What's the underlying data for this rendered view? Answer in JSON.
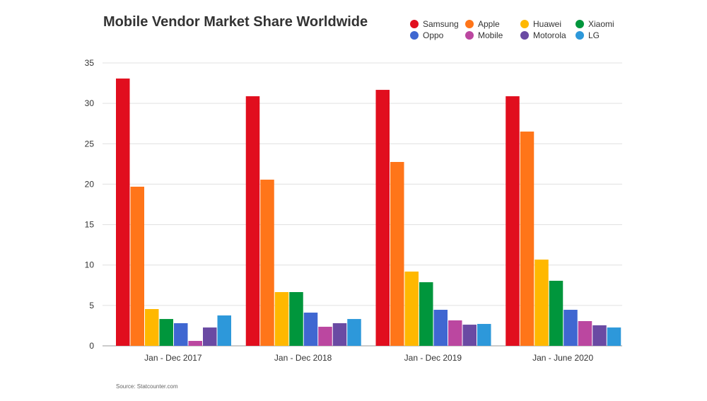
{
  "chart_data": {
    "type": "bar",
    "title": "Mobile Vendor Market Share Worldwide",
    "categories": [
      "Jan - Dec 2017",
      "Jan - Dec 2018",
      "Jan - Dec 2019",
      "Jan - June 2020"
    ],
    "ylim": [
      0,
      35
    ],
    "yticks": [
      0,
      5,
      10,
      15,
      20,
      25,
      30,
      35
    ],
    "grid": true,
    "legend_position": "top-right",
    "series": [
      {
        "name": "Samsung",
        "color": "#e10e1e",
        "values": [
          33.07,
          30.88,
          31.67,
          30.88
        ]
      },
      {
        "name": "Apple",
        "color": "#ff7519",
        "values": [
          19.69,
          20.56,
          22.75,
          26.51
        ]
      },
      {
        "name": "Huawei",
        "color": "#ffb800",
        "values": [
          4.55,
          6.65,
          9.19,
          10.67
        ]
      },
      {
        "name": "Xiaomi",
        "color": "#00963c",
        "values": [
          3.32,
          6.65,
          7.87,
          8.05
        ]
      },
      {
        "name": "Oppo",
        "color": "#3f67d1",
        "values": [
          2.8,
          4.11,
          4.46,
          4.46
        ]
      },
      {
        "name": "Mobile",
        "color": "#bb47a0",
        "values": [
          0.61,
          2.36,
          3.15,
          3.06
        ]
      },
      {
        "name": "Motorola",
        "color": "#6a4aa3",
        "values": [
          2.27,
          2.8,
          2.62,
          2.54
        ]
      },
      {
        "name": "LG",
        "color": "#2d98da",
        "values": [
          3.76,
          3.32,
          2.71,
          2.27
        ]
      }
    ]
  },
  "source": "Source: Statcounter.com"
}
